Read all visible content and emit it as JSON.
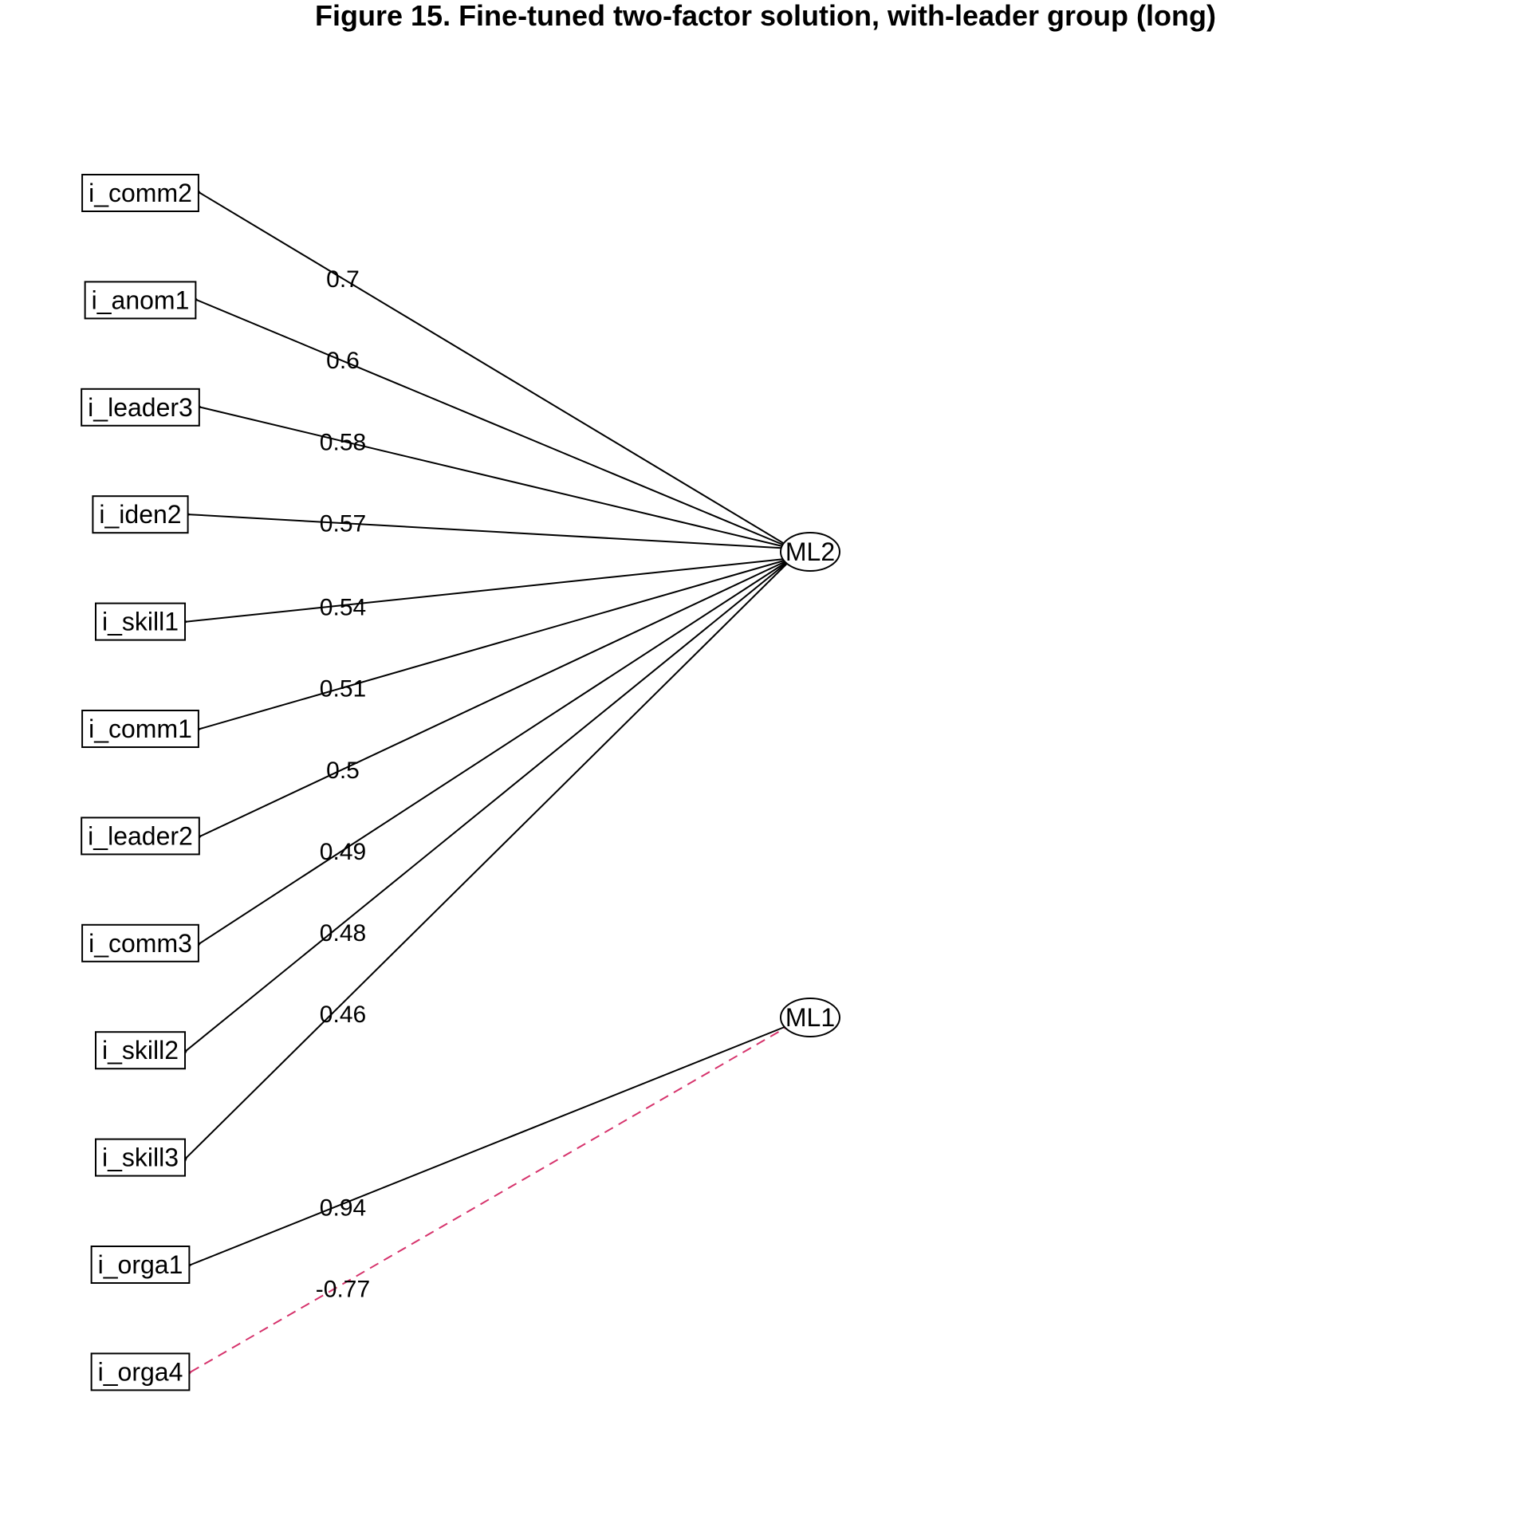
{
  "title": "Figure 15. Fine-tuned two-factor solution, with-leader group (long)",
  "colors": {
    "positive": "#000000",
    "negative": "#d6336c"
  },
  "factors": [
    {
      "id": "ML2",
      "label": "ML2"
    },
    {
      "id": "ML1",
      "label": "ML1"
    }
  ],
  "items": [
    {
      "label": "i_comm2"
    },
    {
      "label": "i_anom1"
    },
    {
      "label": "i_leader3"
    },
    {
      "label": "i_iden2"
    },
    {
      "label": "i_skill1"
    },
    {
      "label": "i_comm1"
    },
    {
      "label": "i_leader2"
    },
    {
      "label": "i_comm3"
    },
    {
      "label": "i_skill2"
    },
    {
      "label": "i_skill3"
    },
    {
      "label": "i_orga1"
    },
    {
      "label": "i_orga4"
    }
  ],
  "loadings": [
    {
      "factor": "ML2",
      "item": "i_comm2",
      "value": "0.7"
    },
    {
      "factor": "ML2",
      "item": "i_anom1",
      "value": "0.6"
    },
    {
      "factor": "ML2",
      "item": "i_leader3",
      "value": "0.58"
    },
    {
      "factor": "ML2",
      "item": "i_iden2",
      "value": "0.57"
    },
    {
      "factor": "ML2",
      "item": "i_skill1",
      "value": "0.54"
    },
    {
      "factor": "ML2",
      "item": "i_comm1",
      "value": "0.51"
    },
    {
      "factor": "ML2",
      "item": "i_leader2",
      "value": "0.5"
    },
    {
      "factor": "ML2",
      "item": "i_comm3",
      "value": "0.49"
    },
    {
      "factor": "ML2",
      "item": "i_skill2",
      "value": "0.48"
    },
    {
      "factor": "ML2",
      "item": "i_skill3",
      "value": "0.46"
    },
    {
      "factor": "ML1",
      "item": "i_orga1",
      "value": "0.94"
    },
    {
      "factor": "ML1",
      "item": "i_orga4",
      "value": "-0.77"
    }
  ]
}
